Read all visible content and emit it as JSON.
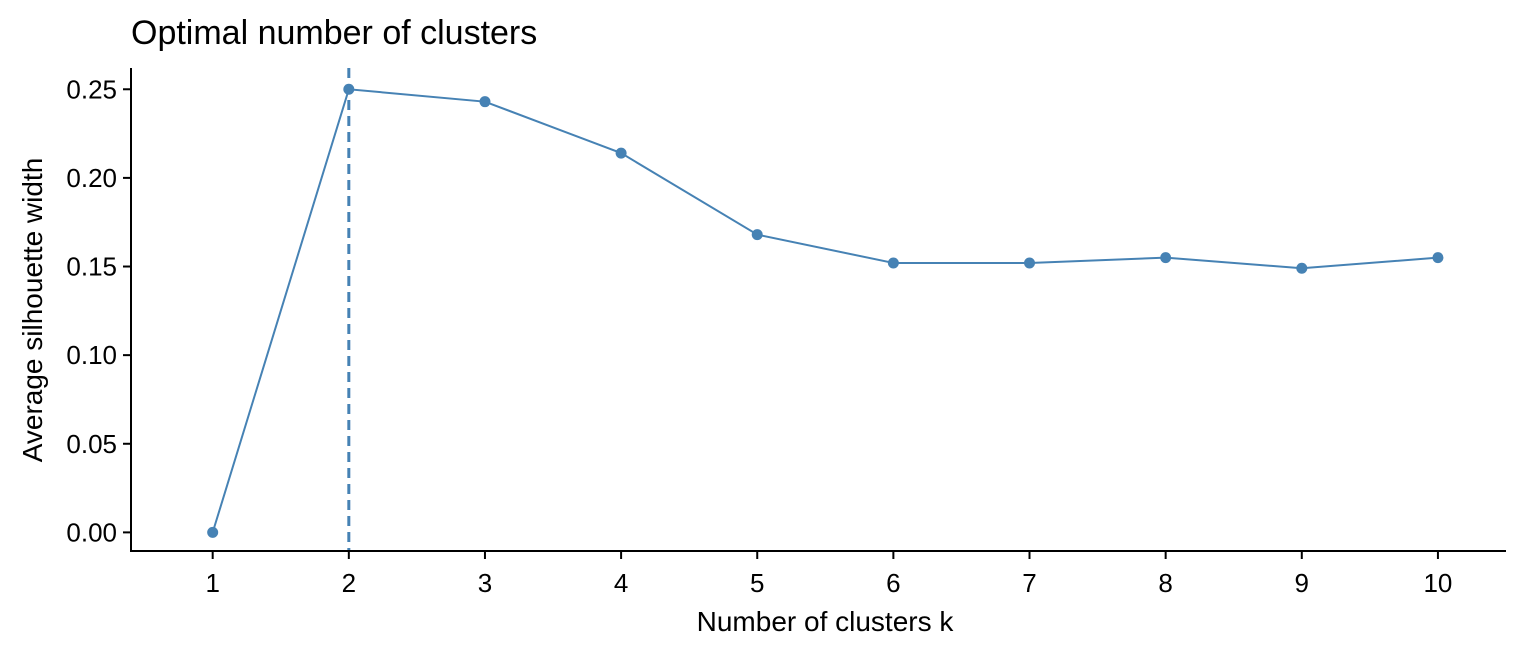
{
  "chart_data": {
    "type": "line",
    "title": "Optimal number of clusters",
    "xlabel": "Number of clusters k",
    "ylabel": "Average silhouette width",
    "categories": [
      "1",
      "2",
      "3",
      "4",
      "5",
      "6",
      "7",
      "8",
      "9",
      "10"
    ],
    "x": [
      1,
      2,
      3,
      4,
      5,
      6,
      7,
      8,
      9,
      10
    ],
    "values": [
      0.0,
      0.25,
      0.243,
      0.214,
      0.168,
      0.152,
      0.152,
      0.155,
      0.149,
      0.155
    ],
    "yticks": [
      "0.00",
      "0.05",
      "0.10",
      "0.15",
      "0.20",
      "0.25"
    ],
    "ytick_values": [
      0,
      0.05,
      0.1,
      0.15,
      0.2,
      0.25
    ],
    "ylim": [
      -0.0105,
      0.262
    ],
    "xlim": [
      0.4,
      10.5
    ],
    "optimal_k": 2,
    "grid": false,
    "legend": "none",
    "colors": {
      "line": "#4682B4",
      "points": "#4682B4",
      "vline": "#4682B4"
    }
  }
}
